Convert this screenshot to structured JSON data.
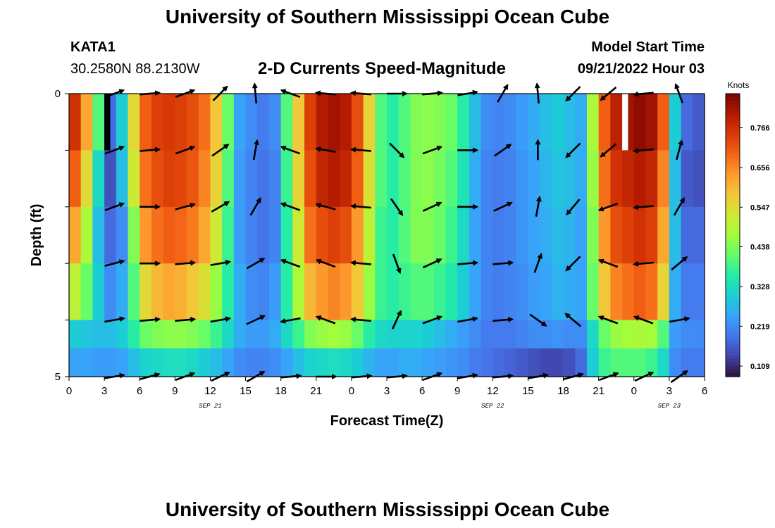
{
  "header": {
    "title": "University of Southern Mississippi Ocean Cube",
    "station": "KATA1",
    "coords": "30.2580N  88.2130W",
    "subtitle": "2-D Currents Speed-Magnitude",
    "model_start_label": "Model Start Time",
    "model_start_value": "09/21/2022 Hour 03"
  },
  "footer": {
    "title": "University of Southern Mississippi Ocean Cube"
  },
  "chart_data": {
    "type": "heatmap",
    "title": "2-D Currents Speed-Magnitude",
    "xlabel": "Forecast Time(Z)",
    "ylabel": "Depth (ft)",
    "x_ticks": [
      "0",
      "3",
      "6",
      "9",
      "12",
      "15",
      "18",
      "21",
      "0",
      "3",
      "6",
      "9",
      "12",
      "15",
      "18",
      "21",
      "0",
      "3",
      "6"
    ],
    "date_labels": [
      {
        "text": "SEP 21",
        "at_tick": 12
      },
      {
        "text": "SEP 22",
        "at_tick": 36
      },
      {
        "text": "SEP 23",
        "at_tick": 51
      }
    ],
    "y_ticks": [
      "0",
      "5"
    ],
    "y_range": [
      0,
      5
    ],
    "x_range_hours": [
      0,
      54
    ],
    "colorbar": {
      "label": "Knots",
      "ticks": [
        "0.766",
        "0.656",
        "0.547",
        "0.438",
        "0.328",
        "0.219",
        "0.109"
      ],
      "colors": [
        "#30123b",
        "#4145ab",
        "#4675ed",
        "#39a2fc",
        "#1bcfd4",
        "#24eca6",
        "#61fc6c",
        "#a4fc3b",
        "#d1e834",
        "#f3c63a",
        "#fe9b2d",
        "#f36315",
        "#d93806",
        "#b11901",
        "#7a0403"
      ],
      "min": 0.08,
      "max": 0.86
    },
    "profiles": {
      "hours": [
        0,
        1,
        2,
        3,
        4,
        5,
        6,
        7,
        8,
        9,
        10,
        11,
        12,
        13,
        14,
        15,
        16,
        17,
        18,
        19,
        20,
        21,
        22,
        23,
        24,
        25,
        26,
        27,
        28,
        29,
        30,
        31,
        32,
        33,
        34,
        35,
        36,
        37,
        38,
        39,
        40,
        41,
        42,
        43,
        44,
        45,
        46,
        47,
        48,
        49,
        50,
        51,
        52,
        53
      ],
      "speed_by_depth": [
        {
          "depth_range": [
            0,
            1
          ],
          "values": [
            0.76,
            0.62,
            0.4,
            0.18,
            0.3,
            0.55,
            0.7,
            0.74,
            0.75,
            0.74,
            0.72,
            0.68,
            0.58,
            0.42,
            0.25,
            0.22,
            0.2,
            0.22,
            0.4,
            0.58,
            0.74,
            0.8,
            0.82,
            0.8,
            0.72,
            0.56,
            0.4,
            0.36,
            0.4,
            0.44,
            0.45,
            0.44,
            0.42,
            0.36,
            0.28,
            0.22,
            0.21,
            0.22,
            0.24,
            0.26,
            0.28,
            0.3,
            0.28,
            0.26,
            0.48,
            0.7,
            0.79,
            0.82,
            0.84,
            0.82,
            0.7,
            0.3,
            0.18,
            0.16
          ]
        },
        {
          "depth_range": [
            1,
            2
          ],
          "values": [
            0.7,
            0.55,
            0.32,
            0.15,
            0.28,
            0.52,
            0.68,
            0.72,
            0.74,
            0.73,
            0.71,
            0.66,
            0.56,
            0.4,
            0.24,
            0.21,
            0.19,
            0.21,
            0.38,
            0.56,
            0.72,
            0.78,
            0.8,
            0.78,
            0.7,
            0.54,
            0.4,
            0.36,
            0.4,
            0.44,
            0.45,
            0.43,
            0.4,
            0.34,
            0.26,
            0.21,
            0.2,
            0.21,
            0.23,
            0.25,
            0.27,
            0.29,
            0.28,
            0.26,
            0.46,
            0.68,
            0.76,
            0.78,
            0.8,
            0.78,
            0.66,
            0.28,
            0.16,
            0.15
          ]
        },
        {
          "depth_range": [
            2,
            3
          ],
          "values": [
            0.62,
            0.48,
            0.28,
            0.18,
            0.22,
            0.44,
            0.64,
            0.68,
            0.7,
            0.69,
            0.67,
            0.62,
            0.52,
            0.38,
            0.24,
            0.21,
            0.19,
            0.21,
            0.36,
            0.52,
            0.68,
            0.72,
            0.74,
            0.72,
            0.64,
            0.5,
            0.38,
            0.36,
            0.4,
            0.44,
            0.44,
            0.42,
            0.38,
            0.32,
            0.25,
            0.21,
            0.2,
            0.21,
            0.23,
            0.25,
            0.26,
            0.28,
            0.27,
            0.25,
            0.44,
            0.64,
            0.72,
            0.74,
            0.76,
            0.74,
            0.62,
            0.28,
            0.18,
            0.18
          ]
        },
        {
          "depth_range": [
            3,
            4
          ],
          "values": [
            0.5,
            0.42,
            0.3,
            0.22,
            0.26,
            0.4,
            0.55,
            0.6,
            0.62,
            0.61,
            0.58,
            0.54,
            0.46,
            0.36,
            0.26,
            0.22,
            0.21,
            0.24,
            0.36,
            0.48,
            0.6,
            0.64,
            0.66,
            0.64,
            0.58,
            0.46,
            0.38,
            0.36,
            0.38,
            0.4,
            0.4,
            0.38,
            0.35,
            0.3,
            0.25,
            0.21,
            0.2,
            0.21,
            0.22,
            0.24,
            0.25,
            0.27,
            0.26,
            0.25,
            0.42,
            0.58,
            0.66,
            0.68,
            0.7,
            0.68,
            0.56,
            0.26,
            0.2,
            0.2
          ]
        },
        {
          "depth_range": [
            4,
            4.5
          ],
          "values": [
            0.3,
            0.29,
            0.28,
            0.28,
            0.3,
            0.36,
            0.42,
            0.44,
            0.45,
            0.45,
            0.44,
            0.42,
            0.38,
            0.32,
            0.26,
            0.24,
            0.24,
            0.26,
            0.32,
            0.38,
            0.44,
            0.46,
            0.47,
            0.46,
            0.42,
            0.36,
            0.32,
            0.31,
            0.31,
            0.31,
            0.3,
            0.28,
            0.26,
            0.24,
            0.22,
            0.2,
            0.2,
            0.2,
            0.21,
            0.22,
            0.22,
            0.23,
            0.22,
            0.22,
            0.32,
            0.42,
            0.46,
            0.47,
            0.48,
            0.47,
            0.4,
            0.24,
            0.22,
            0.22
          ]
        },
        {
          "depth_range": [
            4.5,
            5
          ],
          "values": [
            0.25,
            0.25,
            0.24,
            0.24,
            0.25,
            0.28,
            0.31,
            0.32,
            0.33,
            0.33,
            0.32,
            0.3,
            0.28,
            0.25,
            0.22,
            0.21,
            0.21,
            0.22,
            0.25,
            0.28,
            0.31,
            0.32,
            0.33,
            0.32,
            0.3,
            0.27,
            0.25,
            0.25,
            0.26,
            0.26,
            0.25,
            0.24,
            0.23,
            0.22,
            0.2,
            0.19,
            0.18,
            0.17,
            0.16,
            0.15,
            0.14,
            0.14,
            0.15,
            0.18,
            0.3,
            0.38,
            0.4,
            0.4,
            0.4,
            0.38,
            0.32,
            0.22,
            0.2,
            0.2
          ]
        }
      ],
      "white_markers": [
        {
          "hour": 3,
          "depth_range": [
            0,
            1
          ],
          "color": "#000000",
          "width_hours": 0.5
        },
        {
          "hour": 47,
          "depth_range": [
            0,
            1
          ],
          "color": "#ffffff",
          "width_hours": 0.5
        }
      ]
    },
    "vectors": {
      "hours": [
        3,
        6,
        9,
        12,
        15,
        18,
        21,
        24,
        27,
        30,
        33,
        36,
        39,
        42,
        45,
        48,
        51
      ],
      "depths": [
        0,
        1,
        2,
        3,
        4,
        5
      ],
      "angles_deg": [
        [
          -20,
          -5,
          -20,
          -45,
          -95,
          -160,
          -175,
          -175,
          0,
          -5,
          -10,
          -60,
          -95,
          135,
          140,
          175,
          -110
        ],
        [
          -20,
          -5,
          -20,
          -35,
          -80,
          -160,
          -170,
          -175,
          45,
          -20,
          0,
          -35,
          -90,
          135,
          140,
          175,
          -75
        ],
        [
          -20,
          0,
          -15,
          -30,
          -60,
          -160,
          -165,
          -175,
          55,
          -25,
          0,
          -25,
          -80,
          130,
          160,
          175,
          -60
        ],
        [
          -15,
          0,
          -5,
          -10,
          -30,
          -160,
          -160,
          -175,
          70,
          -25,
          -5,
          -5,
          -70,
          135,
          -160,
          175,
          -40
        ],
        [
          -10,
          -5,
          -5,
          -10,
          -25,
          170,
          -160,
          -175,
          -65,
          -20,
          -10,
          -5,
          35,
          -140,
          -160,
          -160,
          -10
        ],
        [
          -10,
          -15,
          -20,
          -25,
          -30,
          -5,
          0,
          -5,
          -5,
          -20,
          -10,
          -5,
          -10,
          -15,
          -20,
          -25,
          -35
        ]
      ]
    }
  }
}
